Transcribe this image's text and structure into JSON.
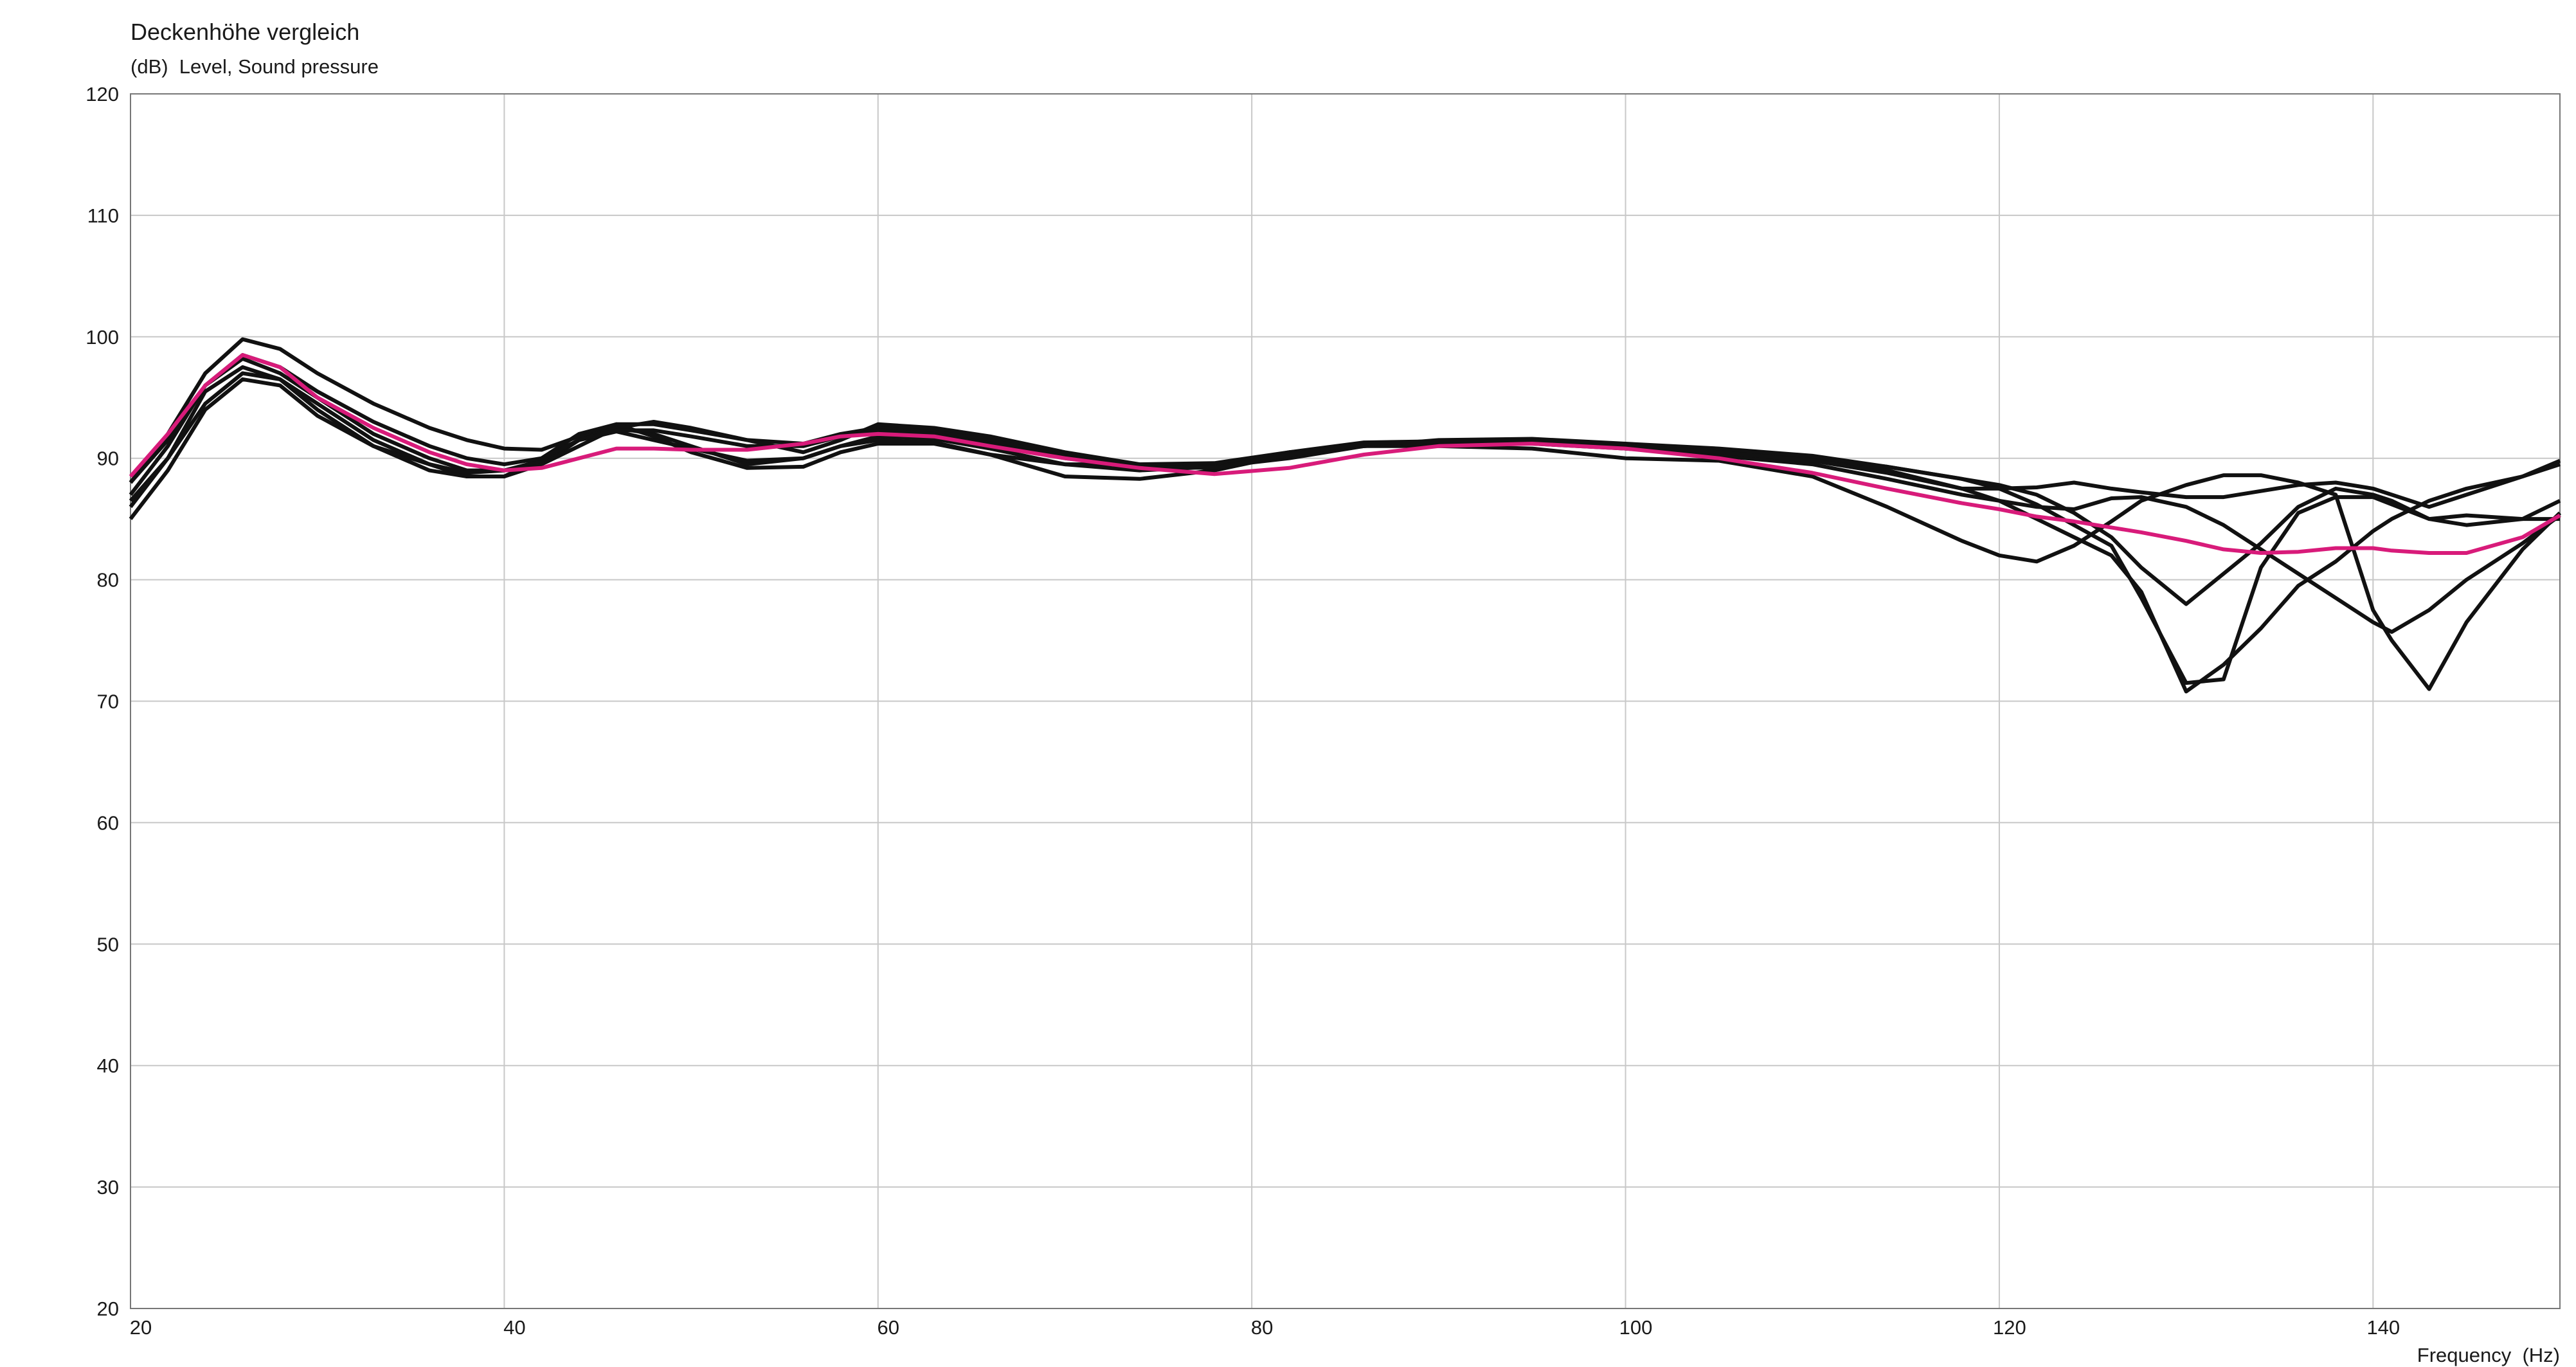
{
  "chart_data": {
    "type": "line",
    "title": "Deckenhöhe vergleich",
    "y_label": "(dB)  Level, Sound pressure",
    "x_label": "Frequency  (Hz)",
    "xlim": [
      20,
      150
    ],
    "ylim": [
      20,
      120
    ],
    "xticks": [
      20,
      40,
      60,
      80,
      100,
      120,
      140
    ],
    "yticks": [
      20,
      30,
      40,
      50,
      60,
      70,
      80,
      90,
      100,
      110,
      120
    ],
    "grid": true,
    "x": [
      20,
      22,
      24,
      26,
      28,
      30,
      33,
      36,
      38,
      40,
      42,
      44,
      46,
      48,
      50,
      53,
      56,
      58,
      60,
      63,
      66,
      70,
      74,
      78,
      82,
      86,
      90,
      95,
      100,
      105,
      110,
      114,
      118,
      120,
      122,
      124,
      126,
      127.6,
      130,
      132,
      134,
      136,
      138,
      140,
      141,
      143,
      145,
      148,
      150
    ],
    "series": [
      {
        "color": "#111111",
        "values": [
          88,
          92,
          97,
          99.8,
          99,
          97,
          94.5,
          92.5,
          91.5,
          90.8,
          90.7,
          91.8,
          92.8,
          92.8,
          92.3,
          91.5,
          91.2,
          92,
          92.5,
          92.3,
          91.5,
          90.3,
          89.3,
          89.3,
          90.5,
          91.3,
          91.4,
          91.4,
          91,
          90.6,
          90,
          89.3,
          88.3,
          87.8,
          87,
          85.5,
          83.5,
          81,
          78,
          80.5,
          83,
          86,
          87.5,
          87,
          86.5,
          85,
          85.3,
          85,
          85
        ]
      },
      {
        "color": "#111111",
        "values": [
          87,
          91,
          96,
          98.2,
          97,
          95,
          92,
          90,
          89,
          89,
          89.5,
          91,
          92.5,
          92,
          91,
          89.5,
          90,
          91,
          91.5,
          91.3,
          90.3,
          89.5,
          89.5,
          89.6,
          90.5,
          91,
          91.3,
          91.2,
          90.8,
          90.3,
          89.8,
          89,
          87.5,
          86.5,
          85,
          83.5,
          82,
          79,
          70.8,
          73,
          76,
          79.5,
          81.5,
          84,
          85,
          86.5,
          87.5,
          88.5,
          89.5
        ]
      },
      {
        "color": "#111111",
        "values": [
          86.5,
          90,
          95.5,
          97.5,
          96.5,
          94,
          91,
          89.5,
          88.5,
          88.5,
          89.5,
          91.5,
          92.5,
          93,
          92.5,
          91.5,
          90.5,
          91.5,
          92.8,
          92.5,
          91.8,
          90.5,
          89.5,
          89.3,
          90,
          91,
          91.5,
          91.6,
          91.2,
          90.8,
          90.2,
          89.3,
          88.3,
          87.5,
          86.2,
          84.5,
          82.8,
          78.5,
          71.5,
          71.8,
          81,
          85.5,
          86.8,
          86.8,
          86.2,
          85,
          84.5,
          85,
          86.5
        ]
      },
      {
        "color": "#111111",
        "values": [
          85,
          89,
          94,
          96.5,
          96,
          93.5,
          91,
          89,
          88.5,
          88.5,
          90,
          92,
          92.8,
          91.8,
          90.5,
          89.2,
          89.3,
          90.5,
          91.2,
          91.2,
          90.3,
          88.5,
          88.3,
          89,
          90.3,
          91,
          91,
          90.8,
          90,
          89.8,
          88.5,
          86,
          83.2,
          82,
          81.5,
          82.8,
          84.8,
          86.5,
          87.8,
          88.6,
          88.6,
          88,
          87,
          77.5,
          75,
          71,
          76.5,
          82.5,
          85.5
        ]
      },
      {
        "color": "#111111",
        "values": [
          86,
          90,
          94.5,
          97,
          96.5,
          94.5,
          91.5,
          89.5,
          88.8,
          89,
          89.8,
          91.5,
          92.2,
          91.5,
          90.8,
          89.8,
          90,
          91,
          91.8,
          91.6,
          90.8,
          89.5,
          89,
          89.3,
          90.2,
          91,
          91.3,
          91.3,
          90.8,
          90.2,
          89.5,
          88.3,
          87,
          86.5,
          86,
          85.8,
          86.7,
          86.8,
          86,
          84.5,
          82.5,
          80.5,
          78.5,
          76.5,
          75.7,
          77.5,
          80,
          83,
          85.3
        ]
      },
      {
        "color": "#111111",
        "values": [
          88,
          91.5,
          96,
          98.5,
          97.5,
          95.5,
          93,
          91,
          90,
          89.5,
          90,
          91.5,
          92.3,
          92.3,
          91.8,
          91,
          91,
          91.8,
          92.3,
          92,
          91.2,
          90,
          89.3,
          89.2,
          90.3,
          91.2,
          91.4,
          91.4,
          91,
          90.5,
          89.8,
          88.8,
          87.5,
          87.5,
          87.6,
          88,
          87.5,
          87.2,
          86.8,
          86.8,
          87.3,
          87.8,
          88,
          87.5,
          87,
          86,
          87,
          88.5,
          89.8
        ]
      },
      {
        "color": "#d81b7a",
        "values": [
          88.5,
          92,
          96,
          98.5,
          97.5,
          95,
          92.5,
          90.5,
          89.5,
          89,
          89.2,
          90,
          90.8,
          90.8,
          90.7,
          90.7,
          91.2,
          91.8,
          92,
          91.8,
          91,
          90,
          89.2,
          88.7,
          89.2,
          90.3,
          91,
          91.2,
          90.8,
          90,
          88.8,
          87.5,
          86.3,
          85.8,
          85.2,
          84.8,
          84.3,
          83.9,
          83.2,
          82.5,
          82.2,
          82.3,
          82.6,
          82.6,
          82.4,
          82.2,
          82.2,
          83.5,
          85.3
        ]
      }
    ]
  }
}
